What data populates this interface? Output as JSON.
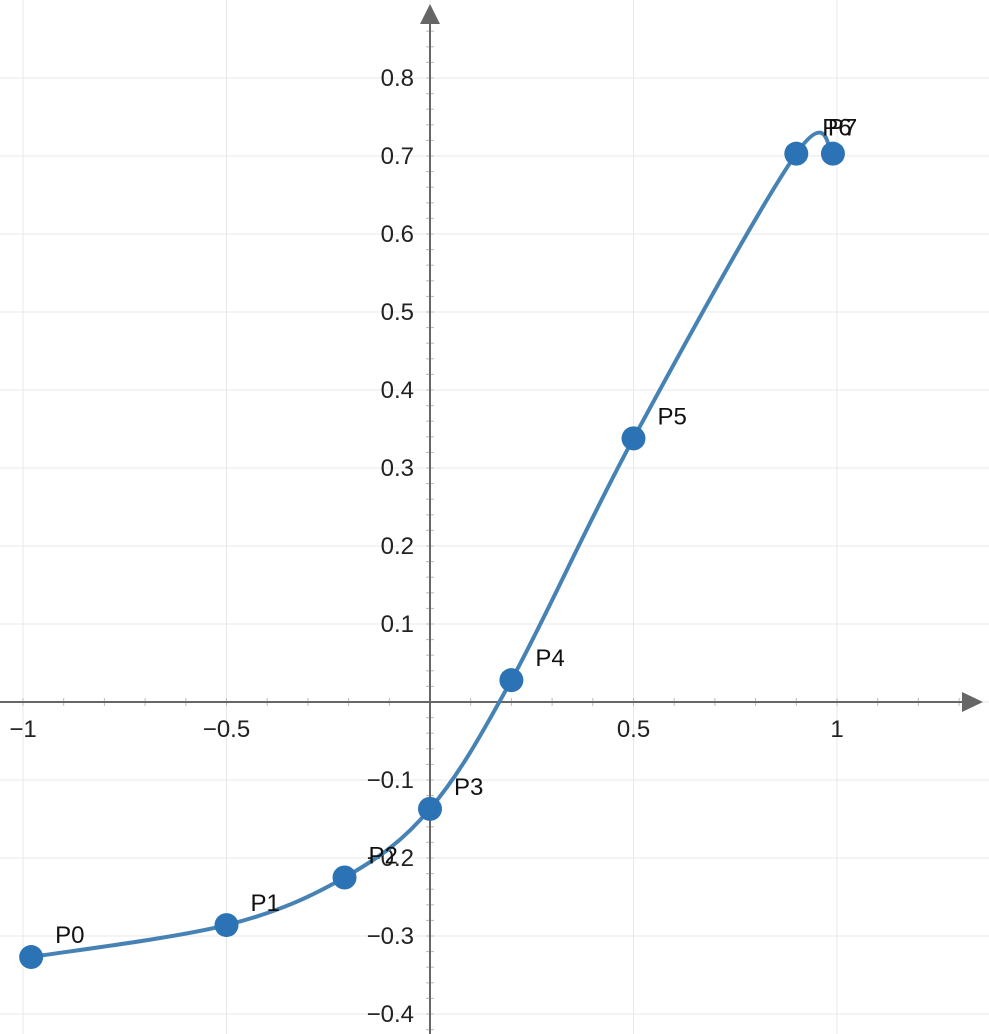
{
  "chart_data": {
    "type": "line",
    "title": "",
    "xlabel": "",
    "ylabel": "",
    "xlim": [
      -1.05,
      1.37
    ],
    "ylim": [
      -0.42,
      0.89
    ],
    "grid": true,
    "x_ticks": [
      {
        "value": -1,
        "label": "−1"
      },
      {
        "value": -0.5,
        "label": "−0.5"
      },
      {
        "value": 0.5,
        "label": "0.5"
      },
      {
        "value": 1,
        "label": "1"
      }
    ],
    "y_ticks": [
      {
        "value": 0.8,
        "label": "0.8"
      },
      {
        "value": 0.7,
        "label": "0.7"
      },
      {
        "value": 0.6,
        "label": "0.6"
      },
      {
        "value": 0.5,
        "label": "0.5"
      },
      {
        "value": 0.4,
        "label": "0.4"
      },
      {
        "value": 0.3,
        "label": "0.3"
      },
      {
        "value": 0.2,
        "label": "0.2"
      },
      {
        "value": 0.1,
        "label": "0.1"
      },
      {
        "value": -0.1,
        "label": "−0.1"
      },
      {
        "value": -0.2,
        "label": "−0.2"
      },
      {
        "value": -0.3,
        "label": "−0.3"
      },
      {
        "value": -0.4,
        "label": "−0.4"
      }
    ],
    "series": [
      {
        "points": [
          {
            "label": "P0",
            "x": -0.98,
            "y": -0.327
          },
          {
            "label": "P1",
            "x": -0.5,
            "y": -0.286
          },
          {
            "label": "P2",
            "x": -0.21,
            "y": -0.225
          },
          {
            "label": "P3",
            "x": 0.0,
            "y": -0.137
          },
          {
            "label": "P4",
            "x": 0.2,
            "y": 0.028
          },
          {
            "label": "P5",
            "x": 0.5,
            "y": 0.338
          },
          {
            "label": "P6",
            "x": 0.9,
            "y": 0.703
          },
          {
            "label": "P7",
            "x": 0.99,
            "y": 0.703
          }
        ]
      }
    ],
    "colors": {
      "line": "#4682b4",
      "marker": "#2c73b5",
      "axis": "#666666",
      "grid": "#e8e8e8"
    }
  }
}
